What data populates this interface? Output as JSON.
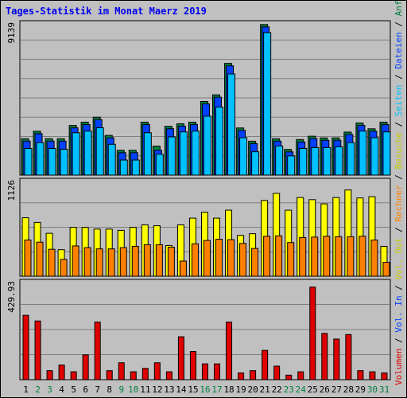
{
  "title": "Tages-Statistik im Monat Maerz 2019",
  "colors": {
    "anfragen": "#008040",
    "dateien": "#0040ff",
    "seiten": "#00c0ff",
    "besuche": "#ffff00",
    "rechner": "#ff8000",
    "vol_out": "#ffff00",
    "vol_in": "#0040ff",
    "volumen": "#e00000",
    "weekend": "#008040",
    "weekday": "#000000"
  },
  "right_legend": [
    {
      "text": "Volumen",
      "color": "#e00000"
    },
    {
      "text": " / ",
      "color": "#000000"
    },
    {
      "text": "Vol. In",
      "color": "#0040ff"
    },
    {
      "text": " / ",
      "color": "#000000"
    },
    {
      "text": "Vol. Out",
      "color": "#c8c800"
    },
    {
      "text": " / ",
      "color": "#000000"
    },
    {
      "text": "Rechner",
      "color": "#ff8000"
    },
    {
      "text": " / ",
      "color": "#000000"
    },
    {
      "text": "Besuche",
      "color": "#c8c800"
    },
    {
      "text": " / ",
      "color": "#000000"
    },
    {
      "text": "Seiten",
      "color": "#00c0ff"
    },
    {
      "text": " / ",
      "color": "#000000"
    },
    {
      "text": "Dateien",
      "color": "#0040ff"
    },
    {
      "text": " / ",
      "color": "#000000"
    },
    {
      "text": "Anfragen",
      "color": "#008040"
    }
  ],
  "chart_data": [
    {
      "type": "bar",
      "ymax_label": "9139",
      "ylim": [
        0,
        9139
      ],
      "categories": [
        "1",
        "2",
        "3",
        "4",
        "5",
        "6",
        "7",
        "8",
        "9",
        "10",
        "11",
        "12",
        "13",
        "14",
        "15",
        "16",
        "17",
        "18",
        "19",
        "20",
        "21",
        "22",
        "23",
        "24",
        "25",
        "26",
        "27",
        "28",
        "29",
        "30",
        "31"
      ],
      "weekend_days": [
        "2",
        "3",
        "9",
        "10",
        "16",
        "17",
        "23",
        "24",
        "30",
        "31"
      ],
      "series": [
        {
          "name": "Anfragen",
          "values": [
            2200,
            2650,
            2200,
            2200,
            3000,
            3200,
            3500,
            2400,
            1500,
            1500,
            3200,
            1750,
            2950,
            3100,
            3200,
            4450,
            4850,
            6750,
            2850,
            2050,
            9100,
            2200,
            1550,
            2150,
            2350,
            2250,
            2250,
            2600,
            3150,
            2800,
            3200
          ]
        },
        {
          "name": "Dateien",
          "values": [
            2200,
            2650,
            2200,
            2200,
            3000,
            3200,
            3500,
            2400,
            1500,
            1500,
            3200,
            1650,
            2950,
            3100,
            3200,
            4450,
            4850,
            6750,
            2850,
            2050,
            9100,
            2200,
            1550,
            2150,
            2350,
            2250,
            2250,
            2600,
            3150,
            2800,
            3200
          ]
        },
        {
          "name": "Seiten",
          "values": [
            1900,
            2250,
            1900,
            1850,
            2850,
            2950,
            3150,
            2150,
            1200,
            1200,
            2850,
            1550,
            2600,
            2900,
            2950,
            3850,
            4400,
            6400,
            2550,
            1700,
            8900,
            2050,
            1450,
            1900,
            1950,
            1950,
            2000,
            2250,
            2950,
            2550,
            2900
          ]
        }
      ]
    },
    {
      "type": "bar",
      "ymax_label": "1126",
      "ylim": [
        0,
        1126
      ],
      "categories": [
        "1",
        "2",
        "3",
        "4",
        "5",
        "6",
        "7",
        "8",
        "9",
        "10",
        "11",
        "12",
        "13",
        "14",
        "15",
        "16",
        "17",
        "18",
        "19",
        "20",
        "21",
        "22",
        "23",
        "24",
        "25",
        "26",
        "27",
        "28",
        "29",
        "30",
        "31"
      ],
      "series": [
        {
          "name": "Besuche",
          "values": [
            695,
            640,
            510,
            315,
            580,
            580,
            560,
            560,
            545,
            580,
            610,
            600,
            365,
            610,
            690,
            760,
            690,
            785,
            485,
            505,
            900,
            985,
            785,
            935,
            910,
            860,
            935,
            1025,
            930,
            945,
            355
          ]
        },
        {
          "name": "Rechner",
          "values": [
            430,
            405,
            320,
            200,
            360,
            340,
            325,
            325,
            340,
            355,
            375,
            375,
            345,
            180,
            385,
            425,
            440,
            435,
            390,
            330,
            475,
            480,
            400,
            460,
            465,
            475,
            470,
            470,
            475,
            430,
            165
          ]
        }
      ]
    },
    {
      "type": "bar",
      "ymax_label": "429.93",
      "ylim": [
        0,
        429.93
      ],
      "categories": [
        "1",
        "2",
        "3",
        "4",
        "5",
        "6",
        "7",
        "8",
        "9",
        "10",
        "11",
        "12",
        "13",
        "14",
        "15",
        "16",
        "17",
        "18",
        "19",
        "20",
        "21",
        "22",
        "23",
        "24",
        "25",
        "26",
        "27",
        "28",
        "29",
        "30",
        "31"
      ],
      "series": [
        {
          "name": "Volumen",
          "values": [
            285,
            260,
            40,
            65,
            35,
            110,
            255,
            40,
            75,
            35,
            50,
            75,
            35,
            190,
            125,
            70,
            70,
            255,
            30,
            40,
            130,
            60,
            20,
            35,
            410,
            205,
            180,
            200,
            40,
            35,
            30
          ]
        }
      ]
    }
  ]
}
